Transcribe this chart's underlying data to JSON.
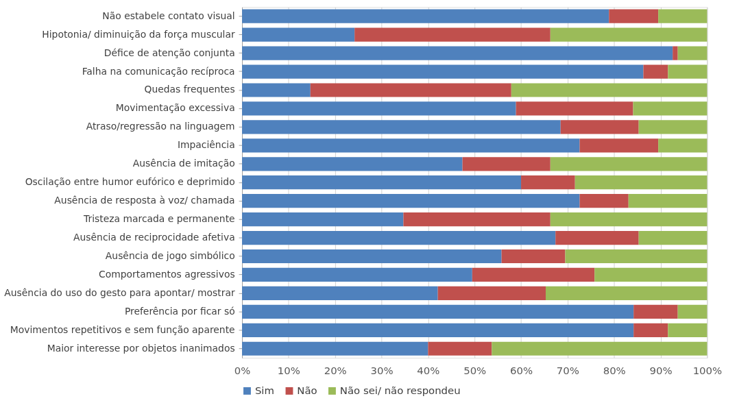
{
  "chart_data": {
    "type": "bar",
    "orientation": "horizontal",
    "stacked": true,
    "categories": [
      "Não estabele contato visual",
      "Hipotonia/ diminuição da força muscular",
      "Défice de atenção conjunta",
      "Falha na comunicação recíproca",
      "Quedas frequentes",
      "Movimentação excessiva",
      "Atraso/regressão na linguagem",
      "Impaciência",
      "Ausência de imitação",
      "Oscilação entre humor eufórico e deprimido",
      "Ausência de resposta à voz/ chamada",
      "Tristeza marcada e permanente",
      "Ausência de reciprocidade afetiva",
      "Ausência de jogo simbólico",
      "Comportamentos agressivos",
      "Ausência do uso do gesto para apontar/ mostrar",
      "Preferência por ficar só",
      "Movimentos repetitivos e sem função aparente",
      "Maior interesse por objetos inanimados "
    ],
    "series": [
      {
        "name": "Sim",
        "color": "#4f81bd",
        "values": [
          78.9,
          24.2,
          92.6,
          86.3,
          14.7,
          58.9,
          68.5,
          72.6,
          47.4,
          60.0,
          72.6,
          34.7,
          67.4,
          55.8,
          49.5,
          42.1,
          84.2,
          84.2,
          40.0
        ]
      },
      {
        "name": "Não",
        "color": "#c0504d",
        "values": [
          10.6,
          42.1,
          1.1,
          5.3,
          43.2,
          25.2,
          16.8,
          16.9,
          18.9,
          11.6,
          10.5,
          31.6,
          17.9,
          13.7,
          26.3,
          23.2,
          9.5,
          7.4,
          13.7
        ]
      },
      {
        "name": "Não sei/ não respondeu",
        "color": "#9bbb59",
        "values": [
          10.5,
          33.7,
          6.3,
          8.4,
          42.1,
          15.9,
          14.7,
          10.5,
          33.7,
          28.4,
          16.9,
          33.7,
          14.7,
          30.5,
          24.2,
          34.7,
          6.3,
          8.4,
          46.3
        ]
      }
    ],
    "xlim": [
      0,
      100
    ],
    "xticks": [
      {
        "value": 0,
        "label": "0%"
      },
      {
        "value": 10,
        "label": "10%"
      },
      {
        "value": 20,
        "label": "20%"
      },
      {
        "value": 30,
        "label": "30%"
      },
      {
        "value": 40,
        "label": "40%"
      },
      {
        "value": 50,
        "label": "50%"
      },
      {
        "value": 60,
        "label": "60%"
      },
      {
        "value": 70,
        "label": "70%"
      },
      {
        "value": 80,
        "label": "80%"
      },
      {
        "value": 90,
        "label": "90%"
      },
      {
        "value": 100,
        "label": "100%"
      }
    ],
    "grid": "x",
    "legend": "bottom"
  }
}
